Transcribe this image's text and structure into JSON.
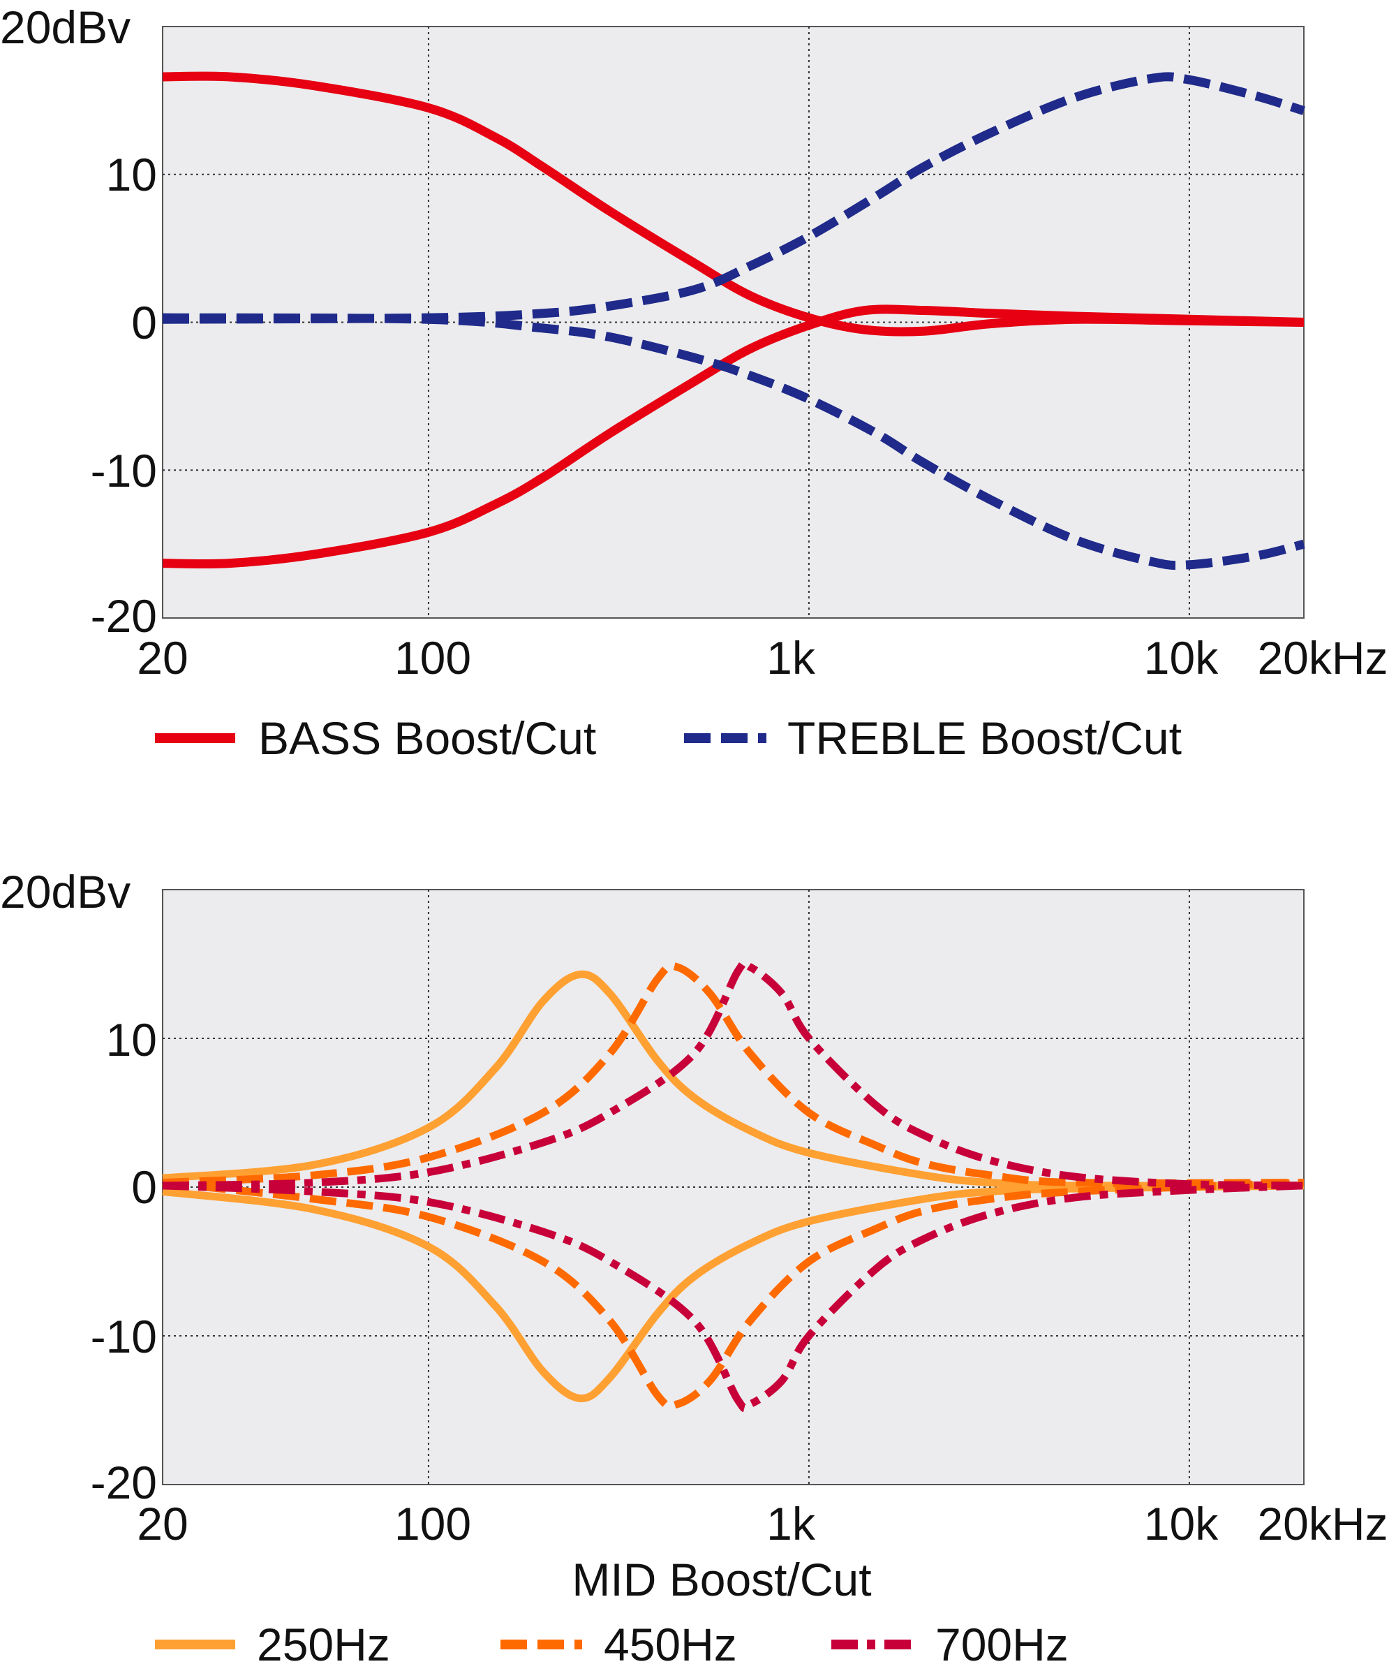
{
  "chart_data": [
    {
      "type": "line",
      "title": "",
      "x_scale": "log",
      "xlim": [
        20,
        20000
      ],
      "ylim": [
        -20,
        20
      ],
      "grid": true,
      "legend_position": "bottom",
      "y_unit_label": "20dBv",
      "yticks": [
        "20dBv",
        "10",
        "0",
        "-10",
        "-20"
      ],
      "xticks": [
        "20",
        "100",
        "1k",
        "10k",
        "20kHz"
      ],
      "xlabel": "",
      "series": [
        {
          "name": "BASS Boost/Cut",
          "style": "solid",
          "color": "#e60012",
          "x": [
            20,
            30,
            50,
            100,
            150,
            200,
            300,
            500,
            700,
            1000,
            1400,
            2000,
            3000,
            5000,
            10000,
            20000
          ],
          "y": [
            16.6,
            16.6,
            16.0,
            14.5,
            12.5,
            10.5,
            7.5,
            4.0,
            1.8,
            0.3,
            -0.5,
            -0.6,
            -0.1,
            0.2,
            0.1,
            0.0
          ]
        },
        {
          "name": "",
          "style": "solid",
          "color": "#e60012",
          "x": [
            20,
            30,
            50,
            100,
            150,
            200,
            300,
            500,
            700,
            1000,
            1400,
            2000,
            3000,
            5000,
            10000,
            20000
          ],
          "y": [
            -16.3,
            -16.3,
            -15.7,
            -14.2,
            -12.3,
            -10.5,
            -7.5,
            -4.0,
            -1.8,
            -0.2,
            0.8,
            0.8,
            0.6,
            0.4,
            0.2,
            0.0
          ]
        },
        {
          "name": "TREBLE Boost/Cut",
          "style": "dashed",
          "color": "#1f2a8a",
          "x": [
            20,
            100,
            200,
            300,
            500,
            700,
            1000,
            1500,
            2000,
            3000,
            5000,
            8000,
            10000,
            15000,
            20000
          ],
          "y": [
            0.2,
            0.3,
            0.6,
            1.1,
            2.2,
            3.8,
            5.8,
            8.5,
            10.5,
            12.8,
            15.2,
            16.5,
            16.4,
            15.3,
            14.3
          ]
        },
        {
          "name": "",
          "style": "dashed",
          "color": "#1f2a8a",
          "x": [
            20,
            100,
            200,
            300,
            500,
            700,
            1000,
            1500,
            2000,
            3000,
            5000,
            8000,
            10000,
            15000,
            20000
          ],
          "y": [
            0.3,
            0.2,
            -0.4,
            -1.0,
            -2.4,
            -3.6,
            -5.2,
            -7.5,
            -9.5,
            -12.0,
            -14.7,
            -16.2,
            -16.4,
            -15.8,
            -15.0
          ]
        }
      ]
    },
    {
      "type": "line",
      "title": "",
      "x_scale": "log",
      "xlim": [
        20,
        20000
      ],
      "ylim": [
        -20,
        20
      ],
      "grid": true,
      "legend_position": "bottom",
      "y_unit_label": "20dBv",
      "yticks": [
        "20dBv",
        "10",
        "0",
        "-10",
        "-20"
      ],
      "xticks": [
        "20",
        "100",
        "1k",
        "10k",
        "20kHz"
      ],
      "xlabel": "MID Boost/Cut",
      "series": [
        {
          "name": "250Hz",
          "style": "solid",
          "color": "#ffa033",
          "x": [
            20,
            50,
            100,
            150,
            200,
            250,
            300,
            400,
            500,
            700,
            1000,
            2000,
            3000,
            5000,
            20000
          ],
          "y": [
            0.6,
            1.5,
            4.0,
            8.0,
            12.5,
            14.3,
            13.0,
            8.5,
            6.0,
            3.8,
            2.3,
            0.8,
            0.3,
            0.1,
            0.1
          ]
        },
        {
          "name": "",
          "style": "solid",
          "color": "#ffa033",
          "x": [
            20,
            50,
            100,
            150,
            200,
            250,
            300,
            400,
            500,
            700,
            1000,
            2000,
            3000,
            5000,
            20000
          ],
          "y": [
            -0.3,
            -1.5,
            -4.0,
            -8.0,
            -12.4,
            -14.2,
            -12.8,
            -8.5,
            -6.0,
            -3.8,
            -2.3,
            -0.8,
            -0.3,
            -0.1,
            0.1
          ]
        },
        {
          "name": "450Hz",
          "style": "dashed",
          "color": "#ff6a00",
          "x": [
            20,
            50,
            100,
            200,
            300,
            400,
            450,
            550,
            700,
            1000,
            1500,
            2000,
            3000,
            5000,
            20000
          ],
          "y": [
            0.3,
            0.8,
            2.0,
            5.0,
            9.0,
            14.0,
            14.8,
            13.0,
            9.0,
            5.0,
            2.8,
            1.6,
            0.8,
            0.3,
            0.3
          ]
        },
        {
          "name": "",
          "style": "dashed",
          "color": "#ff6a00",
          "x": [
            20,
            50,
            100,
            200,
            300,
            400,
            450,
            550,
            700,
            1000,
            1500,
            2000,
            3000,
            5000,
            20000
          ],
          "y": [
            0.3,
            -0.8,
            -2.0,
            -5.0,
            -9.0,
            -14.0,
            -14.6,
            -13.0,
            -9.0,
            -5.0,
            -2.8,
            -1.6,
            -0.8,
            -0.3,
            0.3
          ]
        },
        {
          "name": "700Hz",
          "style": "dash-dot",
          "color": "#c8003a",
          "x": [
            20,
            50,
            100,
            200,
            300,
            500,
            650,
            700,
            850,
            1000,
            1500,
            2000,
            3000,
            5000,
            10000,
            20000
          ],
          "y": [
            0.1,
            0.3,
            1.0,
            3.0,
            5.0,
            9.0,
            14.5,
            14.8,
            13.0,
            10.0,
            5.5,
            3.5,
            1.8,
            0.7,
            0.2,
            0.1
          ]
        },
        {
          "name": "",
          "style": "dash-dot",
          "color": "#c8003a",
          "x": [
            20,
            50,
            100,
            200,
            300,
            500,
            650,
            700,
            850,
            1000,
            1500,
            2000,
            3000,
            5000,
            10000,
            20000
          ],
          "y": [
            0.1,
            -0.3,
            -1.0,
            -3.0,
            -5.0,
            -9.0,
            -14.3,
            -14.6,
            -13.0,
            -10.0,
            -5.5,
            -3.5,
            -1.8,
            -0.7,
            -0.2,
            0.1
          ]
        }
      ]
    }
  ]
}
